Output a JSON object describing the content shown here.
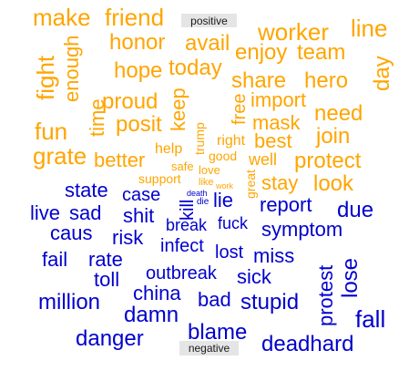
{
  "chart_data": {
    "type": "wordcloud",
    "colors": {
      "positive": "#FFA500",
      "negative": "#0000CD",
      "label_bg": "#E5E5E5",
      "label_text": "#1A1A1A"
    },
    "groups": [
      {
        "name": "positive",
        "words": [
          "make",
          "friend",
          "worker",
          "line",
          "honor",
          "avail",
          "enjoy",
          "team",
          "fight",
          "enough",
          "hope",
          "today",
          "share",
          "hero",
          "day",
          "time",
          "proud",
          "import",
          "free",
          "keep",
          "need",
          "fun",
          "posit",
          "mask",
          "join",
          "grate",
          "trump",
          "right",
          "best",
          "better",
          "help",
          "good",
          "well",
          "protect",
          "safe",
          "love",
          "like",
          "work",
          "support",
          "great",
          "stay",
          "look"
        ]
      },
      {
        "name": "negative",
        "words": [
          "state",
          "case",
          "kill",
          "death",
          "die",
          "lie",
          "report",
          "live",
          "sad",
          "shit",
          "due",
          "caus",
          "risk",
          "break",
          "fuck",
          "symptom",
          "infect",
          "fail",
          "rate",
          "lost",
          "miss",
          "lose",
          "toll",
          "outbreak",
          "sick",
          "protest",
          "million",
          "china",
          "bad",
          "stupid",
          "damn",
          "danger",
          "blame",
          "fall",
          "deadhard"
        ]
      }
    ]
  }
}
